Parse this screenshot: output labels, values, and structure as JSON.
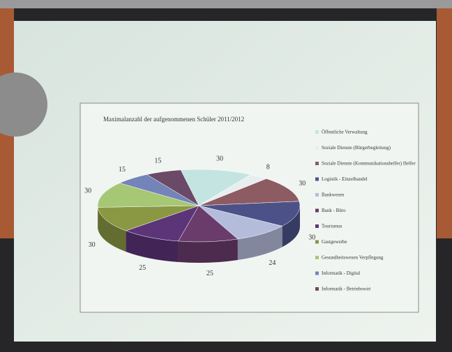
{
  "chart_data": {
    "type": "pie",
    "title": "Maximalanzahl der aufgenommenen Schüler 2011/2012",
    "categories": [
      "Öffentliche Verwaltung",
      "Soziale Dienste (Bürgerbegleitung)",
      "Soziale Dienste (Kommunikationshelfer) Helfer",
      "Logistik - Einzelhandel",
      "Bankwesen",
      "Bank - Büro",
      "Tourismus",
      "Gastgewerbe",
      "Gesundheitswesen Verpflegung",
      "Informatik - Digital",
      "Informatik - Betriebswirt"
    ],
    "values": [
      30,
      8,
      30,
      30,
      24,
      25,
      25,
      30,
      30,
      15,
      15
    ],
    "colors": [
      "#c4e4e2",
      "#e8eef0",
      "#8c5c62",
      "#4c5288",
      "#b4bcdc",
      "#6a3c6c",
      "#5c3478",
      "#8a9844",
      "#a6c874",
      "#7484b8",
      "#6a4a66"
    ]
  }
}
